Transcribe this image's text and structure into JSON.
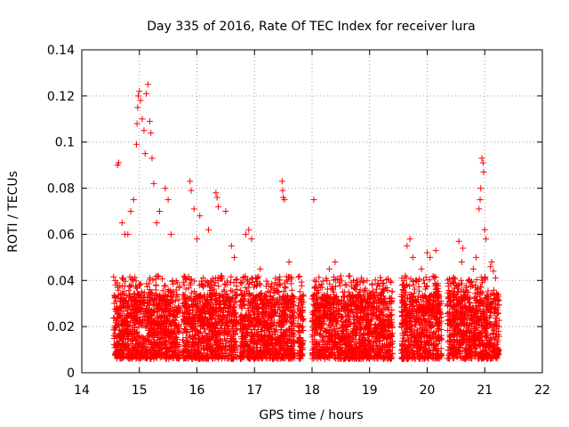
{
  "chart_data": {
    "type": "scatter",
    "title": "Day 335 of 2016, Rate Of TEC Index for receiver lura",
    "xlabel": "GPS time / hours",
    "ylabel": "ROTI / TECUs",
    "xlim": [
      14,
      22
    ],
    "ylim": [
      0,
      0.14
    ],
    "xticks": [
      "14",
      "15",
      "16",
      "17",
      "18",
      "19",
      "20",
      "21",
      "22"
    ],
    "yticks": [
      "0",
      "0.02",
      "0.04",
      "0.06",
      "0.08",
      "0.1",
      "0.12",
      "0.14"
    ],
    "grid": true,
    "marker": "+",
    "color": "#ff0000",
    "series": [
      {
        "segments": [
          [
            14.55,
            15.7
          ],
          [
            15.75,
            16.7
          ],
          [
            16.75,
            17.7
          ],
          [
            17.75,
            17.85
          ],
          [
            18.0,
            18.15
          ],
          [
            18.15,
            19.4
          ],
          [
            19.55,
            20.25
          ],
          [
            20.35,
            21.25
          ]
        ],
        "points": [
          [
            14.62,
            0.09
          ],
          [
            14.64,
            0.091
          ],
          [
            14.7,
            0.065
          ],
          [
            14.75,
            0.06
          ],
          [
            14.8,
            0.06
          ],
          [
            14.85,
            0.07
          ],
          [
            14.9,
            0.075
          ],
          [
            14.95,
            0.099
          ],
          [
            14.96,
            0.108
          ],
          [
            14.97,
            0.115
          ],
          [
            14.98,
            0.12
          ],
          [
            15.0,
            0.122
          ],
          [
            15.02,
            0.118
          ],
          [
            15.05,
            0.11
          ],
          [
            15.08,
            0.105
          ],
          [
            15.1,
            0.095
          ],
          [
            15.12,
            0.121
          ],
          [
            15.15,
            0.125
          ],
          [
            15.18,
            0.109
          ],
          [
            15.2,
            0.104
          ],
          [
            15.22,
            0.093
          ],
          [
            15.25,
            0.082
          ],
          [
            15.3,
            0.065
          ],
          [
            15.35,
            0.07
          ],
          [
            15.45,
            0.08
          ],
          [
            15.5,
            0.075
          ],
          [
            15.55,
            0.06
          ],
          [
            15.88,
            0.083
          ],
          [
            15.9,
            0.079
          ],
          [
            15.95,
            0.071
          ],
          [
            16.0,
            0.058
          ],
          [
            16.05,
            0.068
          ],
          [
            16.2,
            0.062
          ],
          [
            16.33,
            0.078
          ],
          [
            16.35,
            0.076
          ],
          [
            16.37,
            0.072
          ],
          [
            16.5,
            0.07
          ],
          [
            16.6,
            0.055
          ],
          [
            16.65,
            0.05
          ],
          [
            16.85,
            0.06
          ],
          [
            16.9,
            0.062
          ],
          [
            16.95,
            0.058
          ],
          [
            17.1,
            0.045
          ],
          [
            17.48,
            0.083
          ],
          [
            17.49,
            0.079
          ],
          [
            17.5,
            0.076
          ],
          [
            17.52,
            0.075
          ],
          [
            17.6,
            0.048
          ],
          [
            18.03,
            0.075
          ],
          [
            18.3,
            0.045
          ],
          [
            18.4,
            0.048
          ],
          [
            18.5,
            0.042
          ],
          [
            18.6,
            0.038
          ],
          [
            19.65,
            0.055
          ],
          [
            19.7,
            0.058
          ],
          [
            19.75,
            0.05
          ],
          [
            19.9,
            0.045
          ],
          [
            20.0,
            0.052
          ],
          [
            20.05,
            0.05
          ],
          [
            20.15,
            0.053
          ],
          [
            20.55,
            0.057
          ],
          [
            20.6,
            0.048
          ],
          [
            20.62,
            0.054
          ],
          [
            20.8,
            0.045
          ],
          [
            20.85,
            0.05
          ],
          [
            20.9,
            0.071
          ],
          [
            20.92,
            0.075
          ],
          [
            20.93,
            0.08
          ],
          [
            20.95,
            0.093
          ],
          [
            20.97,
            0.091
          ],
          [
            20.98,
            0.087
          ],
          [
            21.0,
            0.062
          ],
          [
            21.02,
            0.058
          ],
          [
            21.1,
            0.046
          ],
          [
            21.12,
            0.048
          ],
          [
            21.15,
            0.044
          ]
        ]
      }
    ]
  }
}
